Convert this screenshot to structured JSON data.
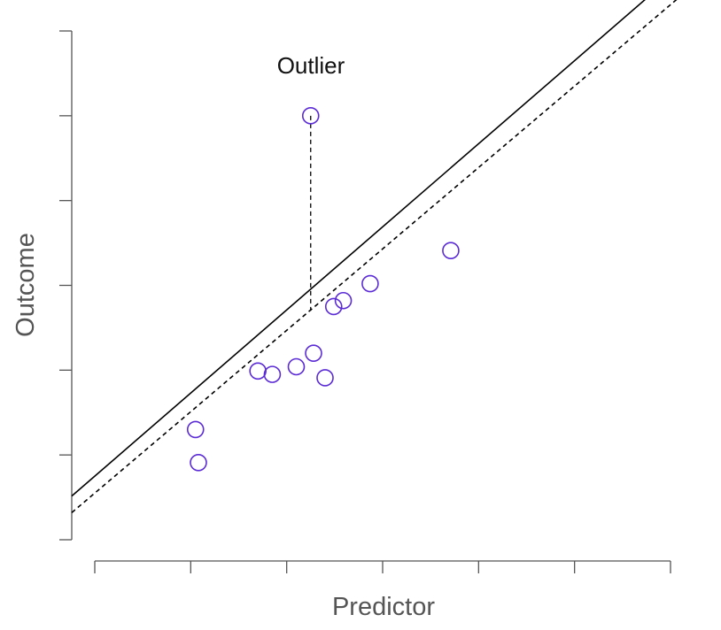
{
  "chart_data": {
    "type": "scatter",
    "title": "",
    "xlabel": "Predictor",
    "ylabel": "Outcome",
    "xlim": [
      0,
      6
    ],
    "ylim": [
      0,
      6
    ],
    "x_ticks": [
      0,
      1,
      2,
      3,
      4,
      5,
      6
    ],
    "y_ticks": [
      0,
      1,
      2,
      3,
      4,
      5,
      6
    ],
    "tick_labels_shown": false,
    "grid": false,
    "point_color": "#5b2bd6",
    "line_color": "#000000",
    "points": [
      {
        "x": 1.05,
        "y": 1.3
      },
      {
        "x": 1.08,
        "y": 0.91
      },
      {
        "x": 1.7,
        "y": 1.99
      },
      {
        "x": 1.85,
        "y": 1.95
      },
      {
        "x": 2.1,
        "y": 2.04
      },
      {
        "x": 2.28,
        "y": 2.2
      },
      {
        "x": 2.4,
        "y": 1.91
      },
      {
        "x": 2.49,
        "y": 2.75
      },
      {
        "x": 2.59,
        "y": 2.82
      },
      {
        "x": 2.87,
        "y": 3.02
      },
      {
        "x": 3.71,
        "y": 3.41
      },
      {
        "x": 2.25,
        "y": 5.0
      }
    ],
    "fit_lines": [
      {
        "style": "solid",
        "intercept": 0.75,
        "slope": 0.98
      },
      {
        "style": "dashed",
        "intercept": 0.55,
        "slope": 0.96
      }
    ],
    "outlier": {
      "x": 2.25,
      "y": 5.0,
      "y_fit_dashed": 2.7
    },
    "annotations": [
      {
        "text": "Outlier"
      }
    ]
  }
}
